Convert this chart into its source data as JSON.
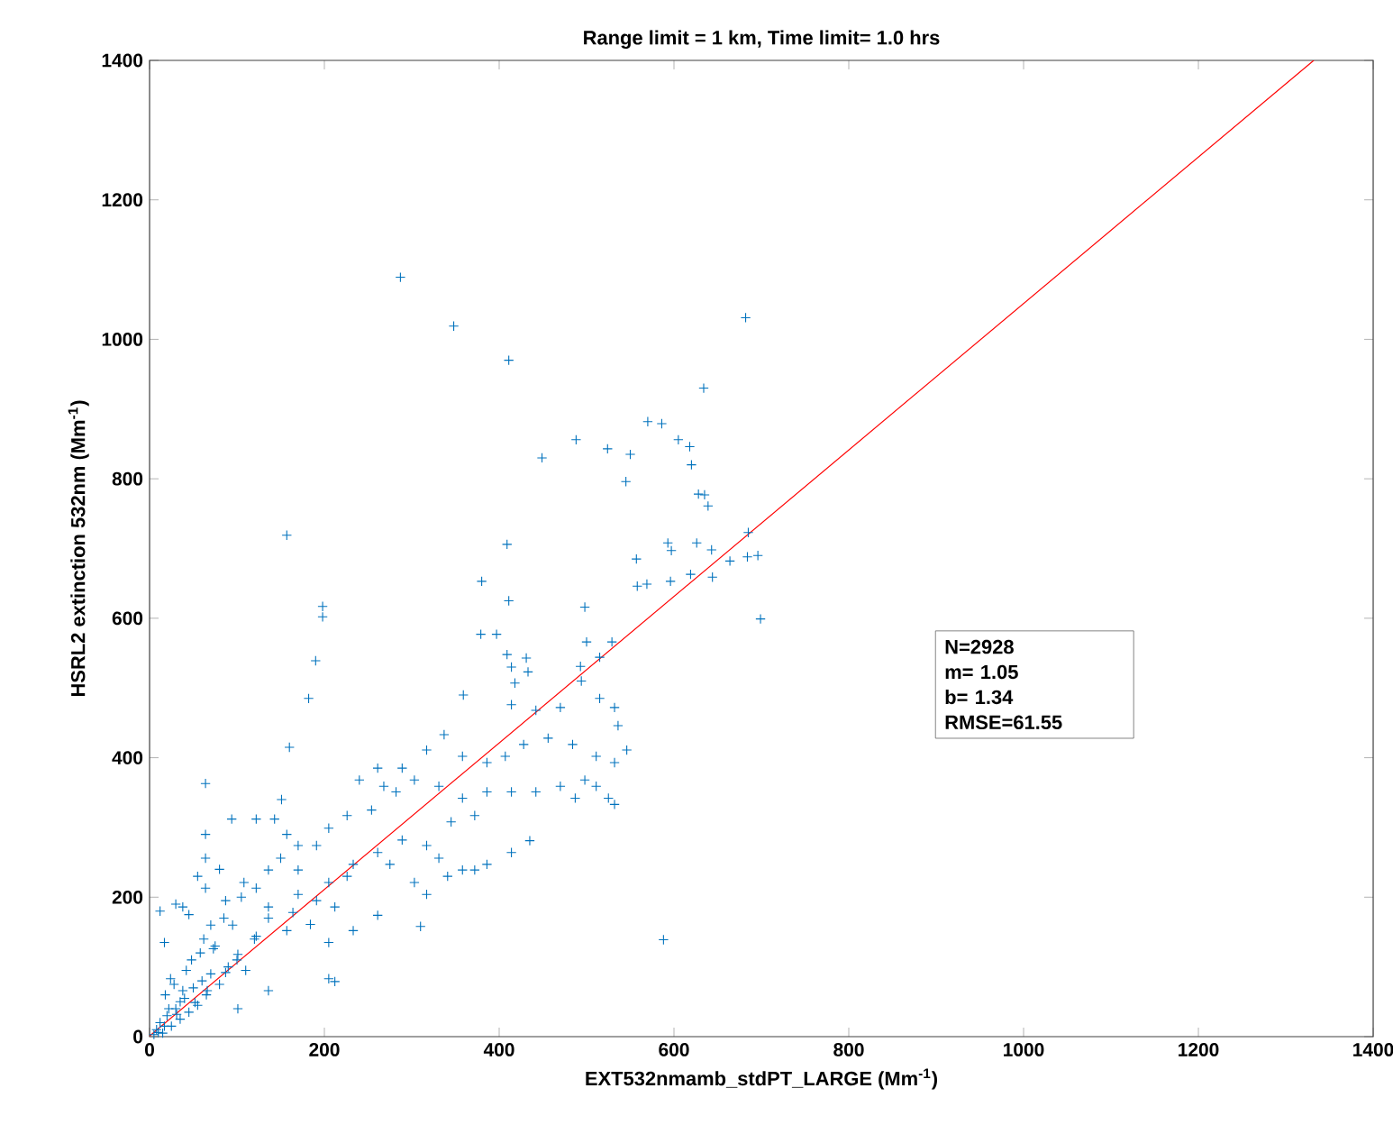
{
  "chart_data": {
    "type": "scatter",
    "title": "Range limit = 1 km, Time limit= 1.0 hrs",
    "xlabel": "EXT532nmamb_stdPT_LARGE (Mm$^{-1}$)",
    "ylabel": "HSRL2 extinction 532nm (Mm$^{-1}$)",
    "xlim": [
      0,
      1400
    ],
    "ylim": [
      0,
      1400
    ],
    "xticks": [
      0,
      200,
      400,
      600,
      800,
      1000,
      1200,
      1400
    ],
    "yticks": [
      0,
      200,
      400,
      600,
      800,
      1000,
      1200,
      1400
    ],
    "grid": false,
    "legend": false,
    "annotations": [
      "N=2928",
      "m=  1.05",
      "b=  1.34",
      "RMSE=61.55"
    ],
    "series": [
      {
        "marker": "cross",
        "color": "#0072bd",
        "x": [
          287,
          348,
          411,
          682,
          634,
          570,
          586,
          488,
          449,
          524,
          550,
          605,
          618,
          620,
          545,
          628,
          635,
          639,
          157,
          409,
          593,
          626,
          597,
          643,
          664,
          696,
          557,
          558,
          569,
          596,
          619,
          644,
          380,
          411,
          498,
          198,
          198,
          379,
          397,
          409,
          431,
          414,
          433,
          418,
          190,
          182,
          500,
          493,
          494,
          529,
          515,
          359,
          160,
          64,
          151,
          699,
          684,
          685,
          588,
          414,
          442,
          470,
          515,
          532,
          536,
          546,
          532,
          511,
          484,
          456,
          428,
          407,
          386,
          358,
          337,
          317,
          289,
          261,
          240,
          282,
          303,
          331,
          358,
          386,
          414,
          442,
          470,
          498,
          525,
          532,
          511,
          487,
          414,
          435,
          386,
          358,
          331,
          303,
          317,
          341,
          372,
          372,
          345,
          317,
          289,
          275,
          261,
          233,
          226,
          205,
          191,
          212,
          233,
          205,
          184,
          170,
          157,
          136,
          122,
          101,
          87,
          66,
          52,
          31,
          17,
          10,
          38,
          24,
          17,
          38,
          73,
          136,
          101,
          205,
          212,
          64,
          64,
          64,
          94,
          122,
          143,
          157,
          150,
          170,
          205,
          226,
          254,
          268,
          191,
          170,
          136,
          122,
          108,
          87,
          136,
          164,
          261,
          310,
          5,
          8,
          12,
          15,
          20,
          25,
          30,
          35,
          40,
          45,
          50,
          55,
          60,
          65,
          70,
          80,
          90,
          100,
          110,
          120,
          18,
          28,
          42,
          58,
          75,
          95,
          12,
          22,
          35,
          48,
          62,
          85,
          105,
          30,
          45,
          70,
          55,
          80
        ],
        "values": [
          1089,
          1019,
          970,
          1031,
          930,
          882,
          879,
          856,
          830,
          843,
          835,
          856,
          846,
          820,
          796,
          778,
          777,
          761,
          719,
          706,
          708,
          708,
          697,
          698,
          682,
          690,
          685,
          646,
          649,
          653,
          663,
          659,
          653,
          625,
          616,
          617,
          602,
          577,
          577,
          548,
          543,
          530,
          523,
          507,
          539,
          485,
          566,
          531,
          510,
          566,
          544,
          490,
          415,
          363,
          340,
          599,
          688,
          723,
          139,
          476,
          468,
          472,
          485,
          472,
          446,
          411,
          393,
          402,
          419,
          428,
          419,
          402,
          393,
          402,
          433,
          411,
          385,
          385,
          368,
          351,
          368,
          359,
          342,
          351,
          351,
          351,
          359,
          368,
          342,
          333,
          359,
          342,
          264,
          281,
          247,
          239,
          256,
          221,
          204,
          230,
          239,
          317,
          308,
          274,
          282,
          247,
          264,
          247,
          230,
          221,
          195,
          186,
          152,
          135,
          161,
          204,
          152,
          170,
          144,
          118,
          92,
          66,
          49,
          32,
          15,
          6,
          66,
          83,
          135,
          186,
          126,
          66,
          40,
          83,
          79,
          290,
          256,
          213,
          312,
          312,
          312,
          290,
          256,
          274,
          299,
          317,
          325,
          359,
          274,
          239,
          239,
          213,
          221,
          195,
          186,
          178,
          174,
          158,
          3,
          10,
          20,
          5,
          30,
          15,
          40,
          25,
          55,
          35,
          70,
          45,
          80,
          60,
          90,
          75,
          100,
          110,
          95,
          140,
          60,
          75,
          95,
          120,
          130,
          160,
          180,
          40,
          50,
          110,
          140,
          170,
          200,
          190,
          175,
          160,
          230,
          240
        ]
      },
      {
        "type": "line",
        "marker": "none",
        "line_style": "solid",
        "color": "#ff0000",
        "x": [
          0,
          1332
        ],
        "values": [
          1,
          1400
        ]
      }
    ]
  }
}
